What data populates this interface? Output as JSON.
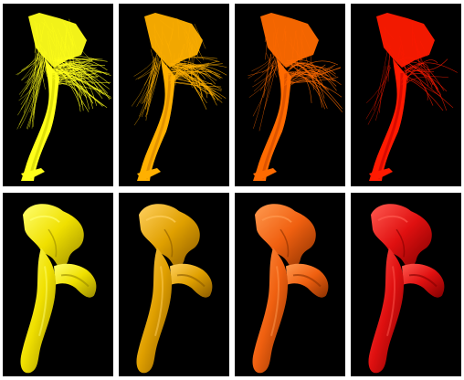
{
  "panels": [
    {
      "id": "p1",
      "kind": "fiber-tract",
      "color": "#ffff1a",
      "shade": "#c9c900",
      "fiber_density": 1.0
    },
    {
      "id": "p2",
      "kind": "fiber-tract",
      "color": "#ffb000",
      "shade": "#d08000",
      "fiber_density": 0.7
    },
    {
      "id": "p3",
      "kind": "fiber-tract",
      "color": "#ff6a00",
      "shade": "#c84600",
      "fiber_density": 0.45
    },
    {
      "id": "p4",
      "kind": "fiber-tract",
      "color": "#ff1a00",
      "shade": "#c00000",
      "fiber_density": 0.2
    },
    {
      "id": "p5",
      "kind": "surface",
      "color": "#f0e000",
      "shade": "#9a8a00",
      "highlight": "#ffff70"
    },
    {
      "id": "p6",
      "kind": "surface",
      "color": "#e0a000",
      "shade": "#8a5a00",
      "highlight": "#ffd060"
    },
    {
      "id": "p7",
      "kind": "surface",
      "color": "#f06010",
      "shade": "#8a3000",
      "highlight": "#ff9a50"
    },
    {
      "id": "p8",
      "kind": "surface",
      "color": "#e01010",
      "shade": "#800000",
      "highlight": "#ff5a50"
    }
  ]
}
